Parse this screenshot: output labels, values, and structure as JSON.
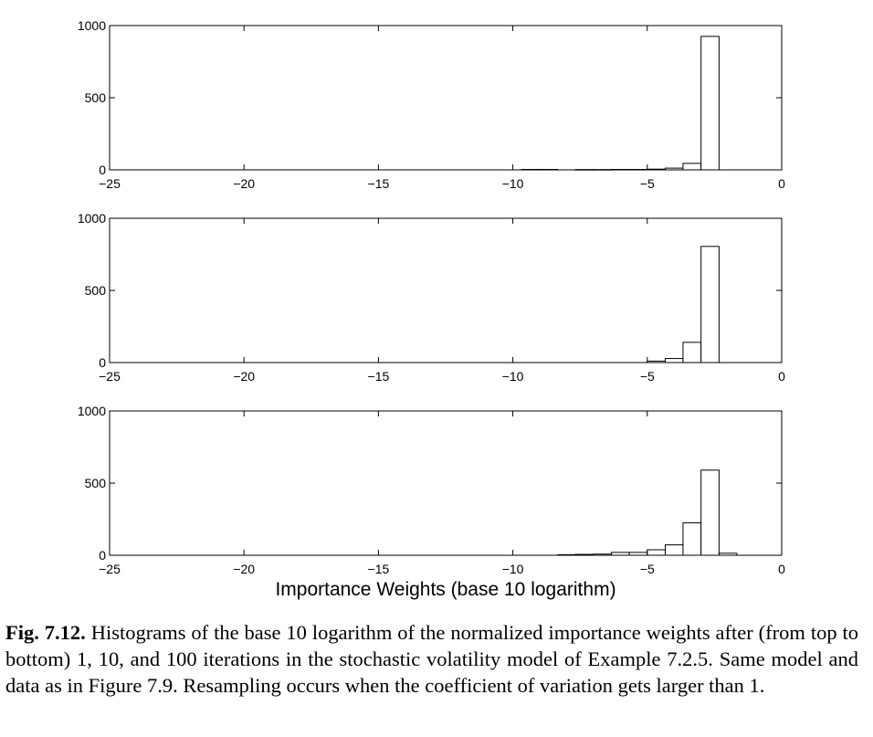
{
  "chart_data": [
    {
      "type": "bar",
      "title": "",
      "xlabel": "",
      "ylabel": "",
      "xlim": [
        -25,
        0
      ],
      "ylim": [
        0,
        1000
      ],
      "xticks": [
        -25,
        -20,
        -15,
        -10,
        -5,
        0
      ],
      "yticks": [
        0,
        500,
        1000
      ],
      "bin_width": 0.667,
      "bins": [
        {
          "x0": -9.67,
          "x1": -9.0,
          "value": 3
        },
        {
          "x0": -9.0,
          "x1": -8.33,
          "value": 3
        },
        {
          "x0": -7.67,
          "x1": -7.0,
          "value": 2
        },
        {
          "x0": -7.0,
          "x1": -6.33,
          "value": 2
        },
        {
          "x0": -6.33,
          "x1": -5.67,
          "value": 3
        },
        {
          "x0": -5.67,
          "x1": -5.0,
          "value": 3
        },
        {
          "x0": -5.0,
          "x1": -4.33,
          "value": 5
        },
        {
          "x0": -4.33,
          "x1": -3.67,
          "value": 12
        },
        {
          "x0": -3.67,
          "x1": -3.0,
          "value": 45
        },
        {
          "x0": -3.0,
          "x1": -2.33,
          "value": 925
        }
      ]
    },
    {
      "type": "bar",
      "title": "",
      "xlabel": "",
      "ylabel": "",
      "xlim": [
        -25,
        0
      ],
      "ylim": [
        0,
        1000
      ],
      "xticks": [
        -25,
        -20,
        -15,
        -10,
        -5,
        0
      ],
      "yticks": [
        0,
        500,
        1000
      ],
      "bin_width": 0.667,
      "bins": [
        {
          "x0": -5.0,
          "x1": -4.33,
          "value": 10
        },
        {
          "x0": -4.33,
          "x1": -3.67,
          "value": 28
        },
        {
          "x0": -3.67,
          "x1": -3.0,
          "value": 140
        },
        {
          "x0": -3.0,
          "x1": -2.33,
          "value": 805
        }
      ]
    },
    {
      "type": "bar",
      "title": "",
      "xlabel": "Importance Weights (base 10 logarithm)",
      "ylabel": "",
      "xlim": [
        -25,
        0
      ],
      "ylim": [
        0,
        1000
      ],
      "xticks": [
        -25,
        -20,
        -15,
        -10,
        -5,
        0
      ],
      "yticks": [
        0,
        500,
        1000
      ],
      "bin_width": 0.667,
      "bins": [
        {
          "x0": -8.33,
          "x1": -7.67,
          "value": 4
        },
        {
          "x0": -7.67,
          "x1": -7.0,
          "value": 6
        },
        {
          "x0": -7.0,
          "x1": -6.33,
          "value": 8
        },
        {
          "x0": -6.33,
          "x1": -5.67,
          "value": 20
        },
        {
          "x0": -5.67,
          "x1": -5.0,
          "value": 20
        },
        {
          "x0": -5.0,
          "x1": -4.33,
          "value": 38
        },
        {
          "x0": -4.33,
          "x1": -3.67,
          "value": 72
        },
        {
          "x0": -3.67,
          "x1": -3.0,
          "value": 225
        },
        {
          "x0": -3.0,
          "x1": -2.33,
          "value": 590
        },
        {
          "x0": -2.33,
          "x1": -1.67,
          "value": 14
        }
      ]
    }
  ],
  "caption": {
    "label": "Fig. 7.12.",
    "text": "Histograms of the base 10 logarithm of the normalized importance weights after (from top to bottom) 1, 10, and 100 iterations in the stochastic volatility model of Example 7.2.5. Same model and data as in Figure 7.9. Resampling occurs when the coefficient of variation gets larger than 1."
  }
}
